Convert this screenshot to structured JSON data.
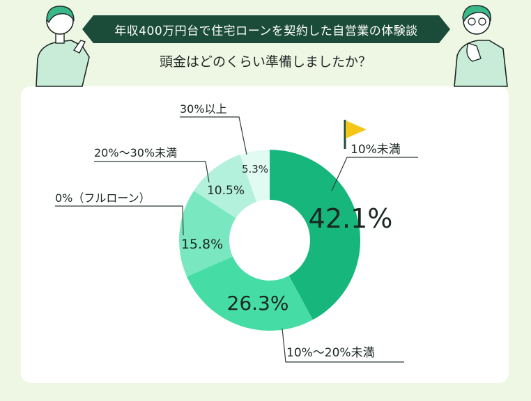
{
  "header": {
    "banner_text": "年収400万円台で住宅ローンを契約した自営業の体験談",
    "question": "頭金はどのくらい準備しましたか？"
  },
  "colors": {
    "banner_bg": "#1b4b39",
    "page_bg": "#eef7e4",
    "flag": "#f5c518"
  },
  "chart_data": {
    "type": "donut",
    "title": "",
    "categories": [
      "10%未満",
      "10%〜20%未満",
      "0%（フルローン）",
      "20%〜30%未満",
      "30%以上"
    ],
    "values": [
      42.1,
      26.3,
      15.8,
      10.5,
      5.3
    ],
    "value_labels": [
      "42.1%",
      "26.3%",
      "15.8%",
      "10.5%",
      "5.3%"
    ],
    "colors": [
      "#16b67c",
      "#45dca6",
      "#79e8c1",
      "#b3f1dc",
      "#e2fbf2"
    ],
    "highlight": "10%未満"
  }
}
